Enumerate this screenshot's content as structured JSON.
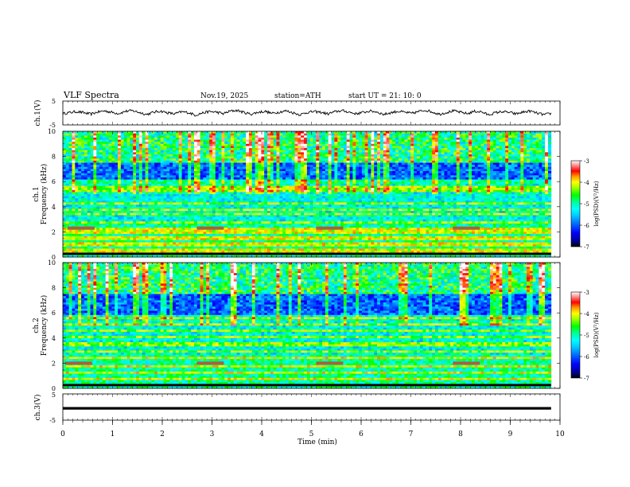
{
  "header": {
    "title": "VLF  Spectra",
    "date": "Nov.19, 2025",
    "station": "station=ATH",
    "start": "start  UT  =   21: 10: 0"
  },
  "colors": {
    "colormap": [
      "#000000",
      "#00008c",
      "#0000ff",
      "#0064ff",
      "#00c8ff",
      "#00ffff",
      "#00ff96",
      "#00ff00",
      "#96ff00",
      "#ffff00",
      "#ff9600",
      "#ff0000",
      "#ff9696",
      "#ffffff"
    ],
    "trace": "#000000",
    "axis": "#000000"
  },
  "chart_data": [
    {
      "type": "line",
      "id": "ch1-waveform",
      "ylabel": "ch.1(V)",
      "ylim": [
        -5,
        5
      ],
      "ytick_labels": [
        "5",
        "-5"
      ],
      "xlim": [
        0,
        10
      ],
      "x_end": 9.82,
      "y": [
        -0.3,
        0.2,
        0.6,
        0.1,
        -0.5,
        0.4,
        0.9,
        0.3,
        -0.2,
        0.7,
        1.0,
        0.2,
        -0.6,
        0.3,
        0.8,
        0.1,
        -0.4,
        0.5,
        0.2,
        -0.9,
        0.0,
        0.6,
        0.4,
        -0.3,
        0.8,
        1.1,
        0.2,
        -0.5,
        0.3,
        0.7,
        -0.2,
        0.4,
        0.9,
        0.1,
        -0.7,
        0.2,
        0.6,
        0.3,
        -0.4,
        0.5,
        1.0,
        0.4,
        -0.3,
        0.2,
        0.8,
        0.5,
        -0.6,
        0.1,
        0.7,
        0.3,
        -0.2,
        0.6,
        1.2,
        0.4,
        -0.5,
        0.2,
        0.9,
        0.3,
        -0.3,
        0.7,
        0.5,
        -0.8,
        0.1,
        0.6,
        0.2,
        -0.4,
        0.4,
        0.8,
        -0.1,
        -0.7,
        -0.2
      ]
    },
    {
      "type": "heatmap",
      "id": "ch1-spectrogram",
      "ylabel": "Frequency  (kHz)",
      "channel_label": "ch.1",
      "ylim": [
        0,
        10
      ],
      "ytick_labels": [
        "0",
        "2",
        "4",
        "6",
        "8",
        "10"
      ],
      "colorbar_label": "log(PSD)(V²/Hz)",
      "colorbar_range": [
        -7,
        -3
      ],
      "colorbar_ticks": [
        "-3",
        "-4",
        "-5",
        "-6",
        "-7"
      ],
      "bands_khz": [
        0.2,
        0.5,
        1.0,
        1.5,
        2.0,
        2.3,
        2.8,
        3.4,
        3.8,
        4.3,
        5.2,
        5.5,
        6.0
      ],
      "swatches": [
        {
          "t": 0.35,
          "f": 2.3
        },
        {
          "t": 2.95,
          "f": 2.3
        },
        {
          "t": 5.35,
          "f": 2.3
        },
        {
          "t": 8.1,
          "f": 2.3
        }
      ]
    },
    {
      "type": "heatmap",
      "id": "ch2-spectrogram",
      "ylabel": "Frequency  (kHz)",
      "channel_label": "ch.2",
      "ylim": [
        0,
        10
      ],
      "ytick_labels": [
        "0",
        "2",
        "4",
        "6",
        "8",
        "10"
      ],
      "colorbar_label": "log(PSD)(V²/Hz)",
      "colorbar_range": [
        -7,
        -3
      ],
      "colorbar_ticks": [
        "-3",
        "-4",
        "-5",
        "-6",
        "-7"
      ],
      "bands_khz": [
        0.3,
        0.8,
        1.2,
        1.8,
        2.4,
        2.9,
        3.4,
        3.6,
        4.1,
        4.6,
        5.1,
        5.6
      ],
      "swatches": [
        {
          "t": 0.3,
          "f": 2.0
        },
        {
          "t": 2.95,
          "f": 2.0
        },
        {
          "t": 5.35,
          "f": 2.0
        },
        {
          "t": 8.1,
          "f": 2.0
        }
      ]
    },
    {
      "type": "line",
      "id": "ch3-waveform",
      "ylabel": "ch.3(V)",
      "ylim": [
        -5,
        5
      ],
      "ytick_labels": [
        "5",
        "-5"
      ],
      "xlim": [
        0,
        10
      ],
      "x_end": 9.82,
      "y": [
        -0.5,
        -0.5
      ]
    }
  ],
  "x_axis": {
    "label": "Time  (min)",
    "ticks": [
      "0",
      "1",
      "2",
      "3",
      "4",
      "5",
      "6",
      "7",
      "8",
      "9",
      "10"
    ],
    "range": [
      0,
      10
    ]
  }
}
